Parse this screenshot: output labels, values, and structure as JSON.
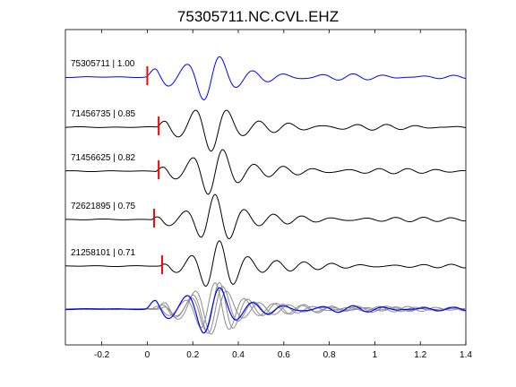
{
  "chart_data": {
    "type": "line",
    "title": "75305711.NC.CVL.EHZ",
    "xlabel": "",
    "ylabel": "",
    "xlim": [
      -0.36,
      1.4
    ],
    "x_ticks": [
      -0.2,
      0,
      0.2,
      0.4,
      0.6,
      0.8,
      1,
      1.2,
      1.4
    ],
    "x_tick_labels": [
      "-0.2",
      "0",
      "0.2",
      "0.4",
      "0.6",
      "0.8",
      "1",
      "1.2",
      "1.4"
    ],
    "grid": false,
    "colors": {
      "reference": "#0000ff",
      "trace": "#000000",
      "pick": "#ff0000",
      "overlay": "#8c8c8c"
    },
    "series": [
      {
        "label": "75305711 | 1.00",
        "pick_time": 0.0,
        "color": "#0000ff"
      },
      {
        "label": "71456735 | 0.85",
        "pick_time": 0.05,
        "color": "#000000"
      },
      {
        "label": "71456625 | 0.82",
        "pick_time": 0.05,
        "color": "#000000"
      },
      {
        "label": "72621895 | 0.75",
        "pick_time": 0.03,
        "color": "#000000"
      },
      {
        "label": "21258101 | 0.71",
        "pick_time": 0.065,
        "color": "#000000"
      }
    ],
    "stack": {
      "type": "overlay",
      "includes_all_traces": true
    }
  }
}
